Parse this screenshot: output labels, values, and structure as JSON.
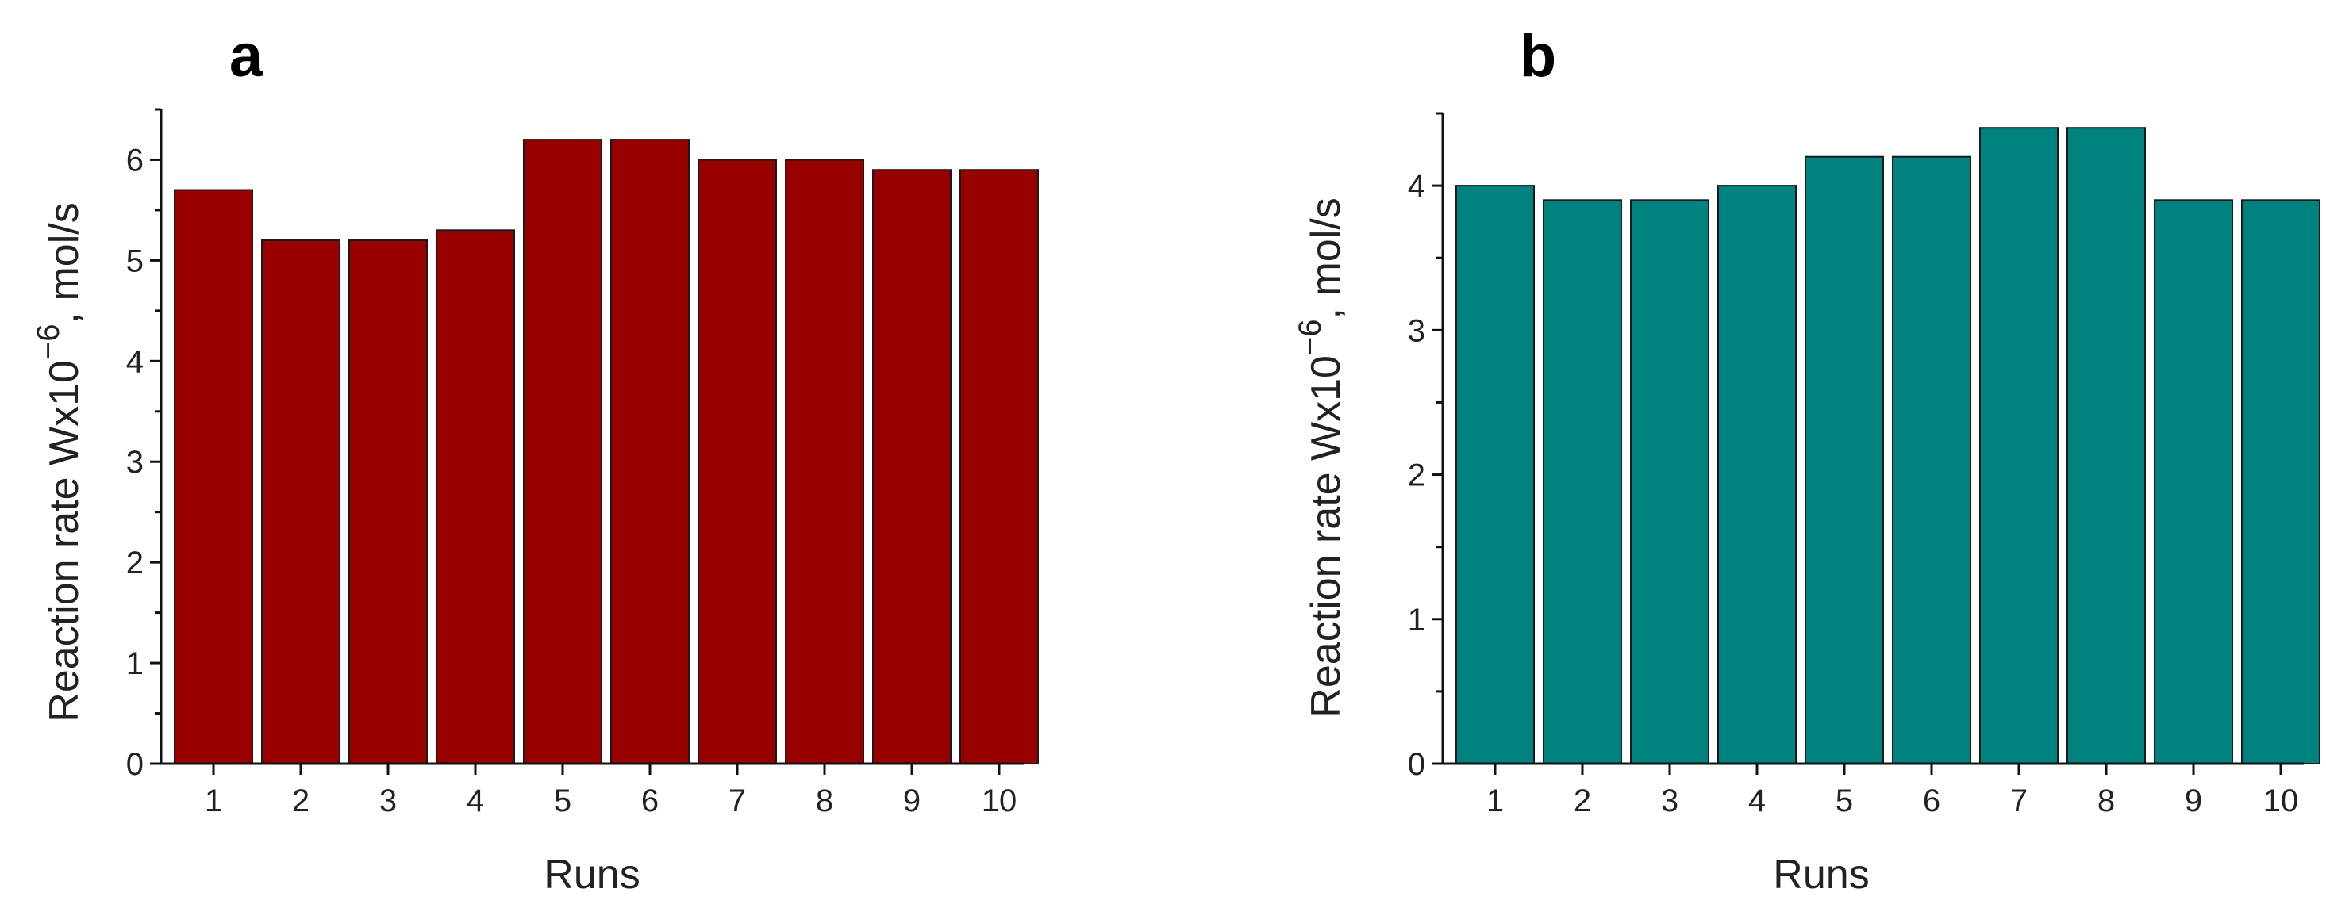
{
  "chart_data": [
    {
      "panel": "a",
      "type": "bar",
      "categories": [
        "1",
        "2",
        "3",
        "4",
        "5",
        "6",
        "7",
        "8",
        "9",
        "10"
      ],
      "values": [
        5.7,
        5.2,
        5.2,
        5.3,
        6.2,
        6.2,
        6.0,
        6.0,
        5.9,
        5.9
      ],
      "xlabel": "Runs",
      "ylabel_prefix": "Reaction rate Wx10",
      "ylabel_exp": "−6",
      "ylabel_suffix": ", mol/s",
      "ylim": [
        0,
        6.5
      ],
      "yticks": [
        0,
        1,
        2,
        3,
        4,
        5,
        6
      ],
      "bar_color": "#990000"
    },
    {
      "panel": "b",
      "type": "bar",
      "categories": [
        "1",
        "2",
        "3",
        "4",
        "5",
        "6",
        "7",
        "8",
        "9",
        "10"
      ],
      "values": [
        4.0,
        3.9,
        3.9,
        4.0,
        4.2,
        4.2,
        4.4,
        4.4,
        3.9,
        3.9
      ],
      "xlabel": "Runs",
      "ylabel_prefix": "Reaction rate Wx10",
      "ylabel_exp": "−6",
      "ylabel_suffix": ", mol/s",
      "ylim": [
        0,
        4.5
      ],
      "yticks": [
        0,
        1,
        2,
        3,
        4
      ],
      "bar_color": "#00837f"
    }
  ]
}
